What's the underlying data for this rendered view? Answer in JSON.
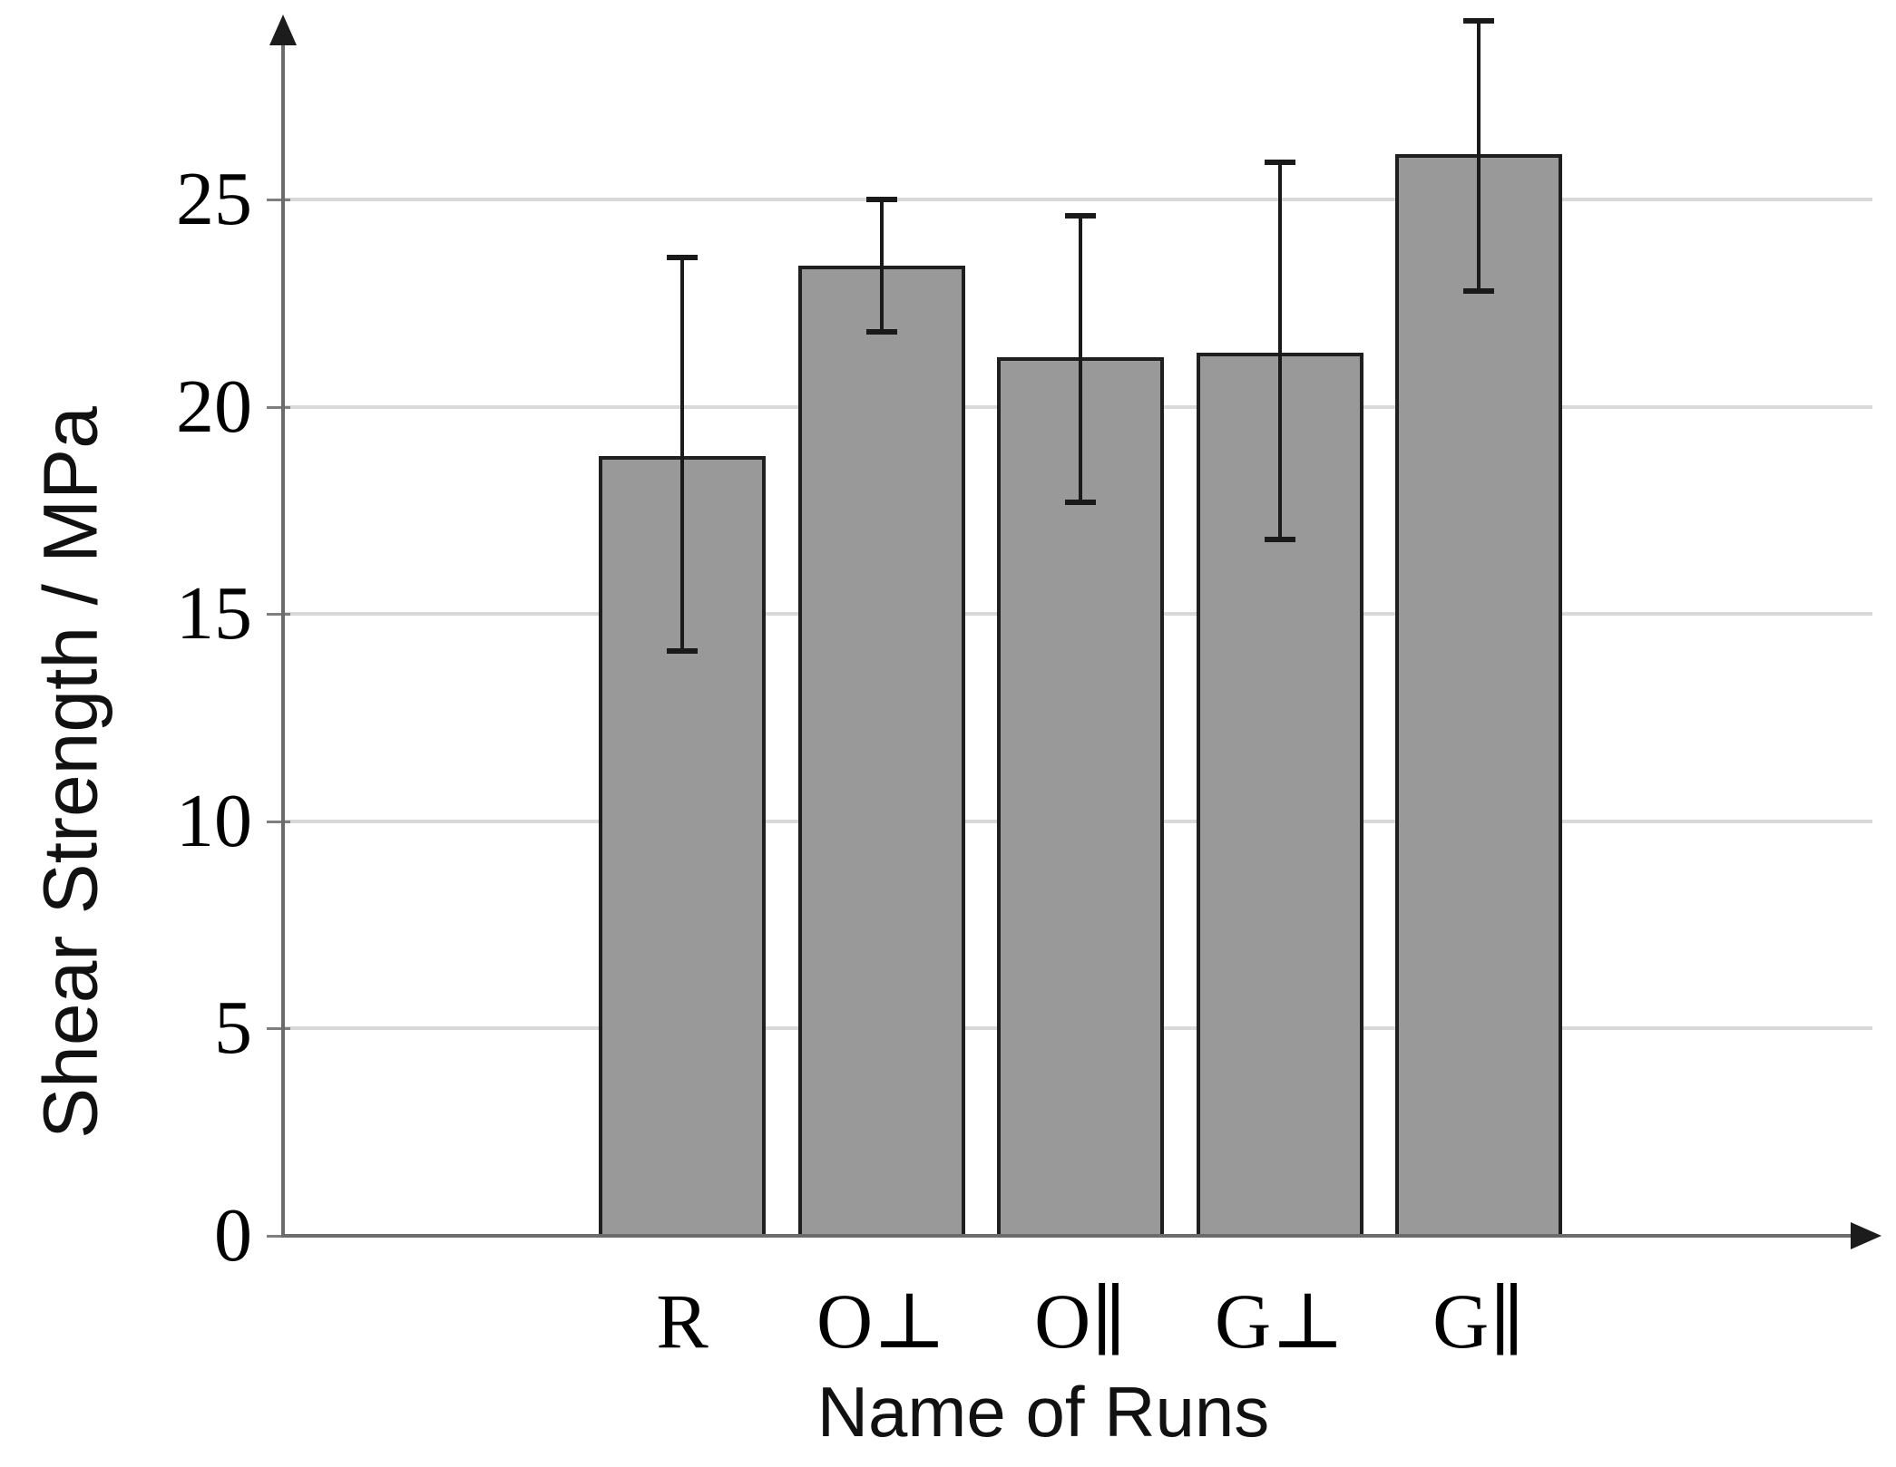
{
  "chart_data": {
    "type": "bar",
    "title": "",
    "xlabel": "Name of Runs",
    "ylabel": "Shear Strength / MPa",
    "categories": [
      "R",
      "O⊥",
      "O∥",
      "G⊥",
      "G∥"
    ],
    "values": [
      18.8,
      23.4,
      21.2,
      21.3,
      26.1
    ],
    "error_upper": [
      23.6,
      25.0,
      24.6,
      25.9,
      29.3
    ],
    "error_lower": [
      14.1,
      21.8,
      17.7,
      16.8,
      22.8
    ],
    "y_ticks": [
      0,
      5,
      10,
      15,
      20,
      25
    ],
    "ylim": [
      0,
      29.5
    ],
    "grid": true,
    "legend": "none",
    "colors": {
      "bar_fill": "#999999",
      "bar_border": "#1f1f1f",
      "error_bar": "#1a1a1a",
      "gridline": "#d9d9d9",
      "axis": "#6b6b6b",
      "arrowhead": "#1c1c1c",
      "text": "#000000"
    }
  }
}
